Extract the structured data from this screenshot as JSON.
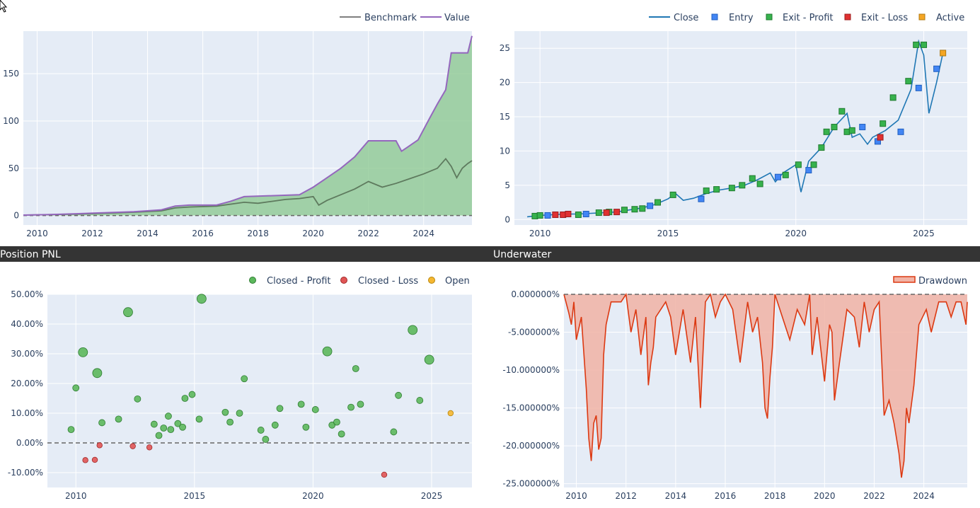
{
  "headers": [
    "",
    "",
    "Position PNL",
    "Underwater"
  ],
  "chart_data": [
    {
      "type": "line",
      "legend": [
        "Benchmark",
        "Value"
      ],
      "x_ticks": [
        "2010",
        "2012",
        "2014",
        "2016",
        "2018",
        "2020",
        "2022",
        "2024"
      ],
      "y_ticks": [
        "0",
        "50",
        "100",
        "150"
      ],
      "xlim": [
        2009.5,
        2025.75
      ],
      "ylim": [
        -10,
        195
      ],
      "series": [
        {
          "name": "Value",
          "x": [
            2009.5,
            2010.5,
            2011.5,
            2012.5,
            2013.5,
            2014.5,
            2015.0,
            2015.5,
            2016.5,
            2017.0,
            2017.5,
            2018.5,
            2019.5,
            2020.0,
            2020.5,
            2021.0,
            2021.5,
            2022.0,
            2022.5,
            2023.0,
            2023.2,
            2023.4,
            2023.8,
            2024.2,
            2024.5,
            2024.8,
            2025.0,
            2025.2,
            2025.4,
            2025.6,
            2025.75
          ],
          "y": [
            0.5,
            1,
            2,
            3,
            4,
            6,
            10,
            11,
            11,
            15,
            20,
            21,
            22,
            30,
            40,
            50,
            62,
            79,
            79,
            79,
            68,
            72,
            80,
            102,
            118,
            133,
            172,
            172,
            172,
            172,
            190
          ]
        },
        {
          "name": "Benchmark",
          "x": [
            2009.5,
            2010.5,
            2011.5,
            2012.5,
            2013.5,
            2014.5,
            2015.0,
            2015.5,
            2016.5,
            2017.0,
            2017.5,
            2018.0,
            2018.5,
            2019.0,
            2019.5,
            2020.0,
            2020.2,
            2020.5,
            2021.0,
            2021.5,
            2022.0,
            2022.5,
            2023.0,
            2023.5,
            2024.0,
            2024.5,
            2024.8,
            2025.0,
            2025.2,
            2025.4,
            2025.6,
            2025.75
          ],
          "y": [
            0.5,
            1,
            1.5,
            2.5,
            3.5,
            5,
            8,
            9,
            10,
            12,
            14,
            13,
            15,
            17,
            18,
            20,
            11,
            16,
            22,
            28,
            36,
            30,
            34,
            39,
            44,
            50,
            60,
            52,
            40,
            50,
            55,
            58
          ]
        },
        {
          "name": "",
          "x": [
            2009.5,
            2025.75
          ],
          "y": [
            0,
            0
          ]
        }
      ]
    },
    {
      "type": "line",
      "legend": [
        "Close",
        "Entry",
        "Exit - Profit",
        "Exit - Loss",
        "Active"
      ],
      "x_ticks": [
        "2010",
        "2015",
        "2020",
        "2025"
      ],
      "y_ticks": [
        "0",
        "5",
        "10",
        "15",
        "20",
        "25"
      ],
      "xlim": [
        2009.0,
        2026.7
      ],
      "ylim": [
        -0.8,
        27.5
      ],
      "series": [
        {
          "name": "Close",
          "x": [
            2009.5,
            2010.0,
            2010.5,
            2011.0,
            2011.5,
            2012.0,
            2012.5,
            2013.0,
            2013.5,
            2014.0,
            2014.5,
            2015.0,
            2015.3,
            2015.6,
            2016.0,
            2016.5,
            2017.0,
            2017.5,
            2018.0,
            2018.5,
            2019.0,
            2019.2,
            2019.5,
            2020.0,
            2020.2,
            2020.5,
            2021.0,
            2021.5,
            2022.0,
            2022.2,
            2022.5,
            2022.8,
            2023.0,
            2023.5,
            2024.0,
            2024.5,
            2024.8,
            2025.0,
            2025.2,
            2025.5,
            2025.75
          ],
          "y": [
            0.4,
            0.6,
            0.7,
            0.8,
            0.8,
            0.9,
            1.0,
            1.1,
            1.4,
            1.7,
            2.2,
            3.0,
            3.8,
            2.8,
            3.1,
            3.8,
            4.3,
            4.6,
            5.0,
            5.8,
            6.8,
            5.5,
            6.8,
            8.0,
            4.0,
            8.5,
            10.5,
            13.5,
            15.5,
            12.0,
            12.5,
            11.0,
            12.0,
            13.0,
            14.5,
            19.0,
            26.0,
            24.0,
            15.5,
            20.0,
            24.3
          ]
        },
        {
          "name": "Entry",
          "x": [
            2010.3,
            2011.8,
            2014.3,
            2016.3,
            2019.3,
            2020.5,
            2022.6,
            2023.2,
            2024.1,
            2024.8,
            2025.5
          ],
          "y": [
            0.6,
            0.8,
            2.0,
            3.0,
            6.2,
            7.2,
            13.5,
            11.4,
            12.8,
            19.2,
            22.0
          ]
        },
        {
          "name": "Exit - Profit",
          "x": [
            2009.8,
            2010.0,
            2011.5,
            2012.3,
            2012.7,
            2013.3,
            2013.7,
            2014.0,
            2014.6,
            2015.2,
            2016.5,
            2016.9,
            2017.5,
            2017.9,
            2018.3,
            2018.6,
            2019.6,
            2020.1,
            2020.7,
            2021.0,
            2021.2,
            2021.5,
            2021.8,
            2022.0,
            2022.2,
            2023.4,
            2023.8,
            2024.4,
            2024.7,
            2025.0
          ],
          "y": [
            0.5,
            0.6,
            0.7,
            1.0,
            1.1,
            1.4,
            1.5,
            1.6,
            2.5,
            3.6,
            4.2,
            4.4,
            4.6,
            5.0,
            6.0,
            5.2,
            6.5,
            8.0,
            8.0,
            10.5,
            12.8,
            13.5,
            15.8,
            12.8,
            13.0,
            14.0,
            17.8,
            20.2,
            25.5,
            25.5
          ]
        },
        {
          "name": "Exit - Loss",
          "x": [
            2010.6,
            2010.9,
            2011.1,
            2012.6,
            2013.0,
            2023.3
          ],
          "y": [
            0.7,
            0.7,
            0.8,
            1.0,
            1.1,
            12.0
          ]
        },
        {
          "name": "Active",
          "x": [
            2025.75
          ],
          "y": [
            24.3
          ]
        }
      ]
    },
    {
      "type": "scatter",
      "legend": [
        "Closed - Profit",
        "Closed - Loss",
        "Open"
      ],
      "x_ticks": [
        "2010",
        "2015",
        "2020",
        "2025"
      ],
      "y_ticks": [
        "50.00%",
        "40.00%",
        "30.00%",
        "20.00%",
        "10.00%",
        "0.00%",
        "-10.00%"
      ],
      "xlim": [
        2008.8,
        2026.7
      ],
      "ylim": [
        -15,
        50
      ],
      "series": [
        {
          "name": "Closed - Profit",
          "x": [
            2009.8,
            2010.0,
            2010.3,
            2010.9,
            2011.1,
            2011.8,
            2012.2,
            2012.6,
            2013.3,
            2013.5,
            2013.7,
            2013.9,
            2014.0,
            2014.3,
            2014.5,
            2014.6,
            2014.9,
            2015.2,
            2015.3,
            2016.3,
            2016.5,
            2016.9,
            2017.1,
            2017.8,
            2018.0,
            2018.4,
            2018.6,
            2019.5,
            2019.7,
            2020.1,
            2020.6,
            2020.8,
            2021.0,
            2021.2,
            2021.6,
            2021.8,
            2022.0,
            2023.4,
            2023.6,
            2024.2,
            2024.5,
            2024.9
          ],
          "y": [
            4.5,
            18.5,
            30.5,
            23.5,
            6.8,
            8.0,
            44.0,
            14.8,
            6.3,
            2.5,
            5.0,
            9.0,
            4.5,
            6.5,
            5.3,
            15.0,
            16.3,
            8.0,
            48.5,
            10.3,
            7.0,
            10.0,
            21.6,
            4.3,
            1.2,
            6.0,
            11.6,
            13.0,
            5.3,
            11.2,
            30.8,
            6.0,
            7.0,
            3.0,
            12.0,
            25.0,
            13.0,
            3.7,
            16.0,
            38.0,
            14.3,
            28.0
          ],
          "sizes": [
            1,
            1,
            2,
            2,
            1,
            1,
            2,
            1,
            1,
            1,
            1,
            1,
            1,
            1,
            1,
            1,
            1,
            1,
            2,
            1,
            1,
            1,
            1,
            1,
            1,
            1,
            1,
            1,
            1,
            1,
            2,
            1,
            1,
            1,
            1,
            1,
            1,
            1,
            1,
            2,
            1,
            2
          ]
        },
        {
          "name": "Closed - Loss",
          "x": [
            2010.4,
            2010.8,
            2011.0,
            2012.4,
            2013.1,
            2023.0
          ],
          "y": [
            -5.8,
            -5.7,
            -0.8,
            -1.1,
            -1.5,
            -10.7
          ]
        },
        {
          "name": "Open",
          "x": [
            2025.8
          ],
          "y": [
            10.0
          ]
        }
      ]
    },
    {
      "type": "area",
      "legend": [
        "Drawdown"
      ],
      "x_ticks": [
        "2010",
        "2012",
        "2014",
        "2016",
        "2018",
        "2020",
        "2022",
        "2024"
      ],
      "y_ticks": [
        "0.000000%",
        "-5.000000%",
        "-10.000000%",
        "-15.000000%",
        "-20.000000%",
        "-25.000000%"
      ],
      "xlim": [
        2009.5,
        2025.75
      ],
      "ylim": [
        -25.5,
        0
      ],
      "series": [
        {
          "name": "Drawdown",
          "x": [
            2009.5,
            2009.7,
            2009.8,
            2009.9,
            2010.0,
            2010.2,
            2010.4,
            2010.5,
            2010.6,
            2010.7,
            2010.8,
            2010.9,
            2011.0,
            2011.1,
            2011.2,
            2011.4,
            2011.6,
            2011.8,
            2012.0,
            2012.2,
            2012.4,
            2012.6,
            2012.8,
            2012.9,
            2013.0,
            2013.1,
            2013.2,
            2013.4,
            2013.6,
            2013.8,
            2014.0,
            2014.3,
            2014.6,
            2014.8,
            2015.0,
            2015.2,
            2015.4,
            2015.6,
            2015.8,
            2016.0,
            2016.3,
            2016.6,
            2016.9,
            2017.1,
            2017.3,
            2017.5,
            2017.6,
            2017.7,
            2017.8,
            2017.9,
            2018.0,
            2018.3,
            2018.6,
            2018.9,
            2019.2,
            2019.4,
            2019.5,
            2019.7,
            2020.0,
            2020.2,
            2020.3,
            2020.4,
            2020.6,
            2020.9,
            2021.2,
            2021.4,
            2021.6,
            2021.8,
            2022.0,
            2022.2,
            2022.4,
            2022.6,
            2022.8,
            2023.0,
            2023.1,
            2023.2,
            2023.3,
            2023.4,
            2023.6,
            2023.8,
            2024.1,
            2024.3,
            2024.6,
            2024.9,
            2025.1,
            2025.3,
            2025.5,
            2025.7,
            2025.75
          ],
          "y": [
            0,
            -2.5,
            -4,
            -1,
            -6,
            -3,
            -12.5,
            -19,
            -22,
            -17,
            -16,
            -20.5,
            -19,
            -8,
            -4,
            -1,
            -1,
            -1,
            0,
            -5,
            -2,
            -8,
            -3,
            -12,
            -9,
            -7,
            -3,
            -2,
            -1,
            -3,
            -8,
            -2,
            -9,
            -3,
            -15,
            -1,
            0,
            -3,
            -1,
            0,
            -2,
            -9,
            -1,
            -5,
            -3,
            -9,
            -15,
            -16.4,
            -11,
            -7,
            0,
            -3,
            -6,
            -2,
            -4,
            0,
            -8,
            -3,
            -11.5,
            -4,
            -5,
            -14,
            -9,
            -2,
            -3,
            -7,
            -1,
            -5,
            -2,
            -1,
            -16,
            -14,
            -17,
            -21,
            -24.2,
            -22,
            -15,
            -17,
            -12,
            -4,
            -2,
            -5,
            -1,
            -1,
            -3,
            -1,
            -1,
            -4,
            -1
          ]
        }
      ]
    }
  ]
}
